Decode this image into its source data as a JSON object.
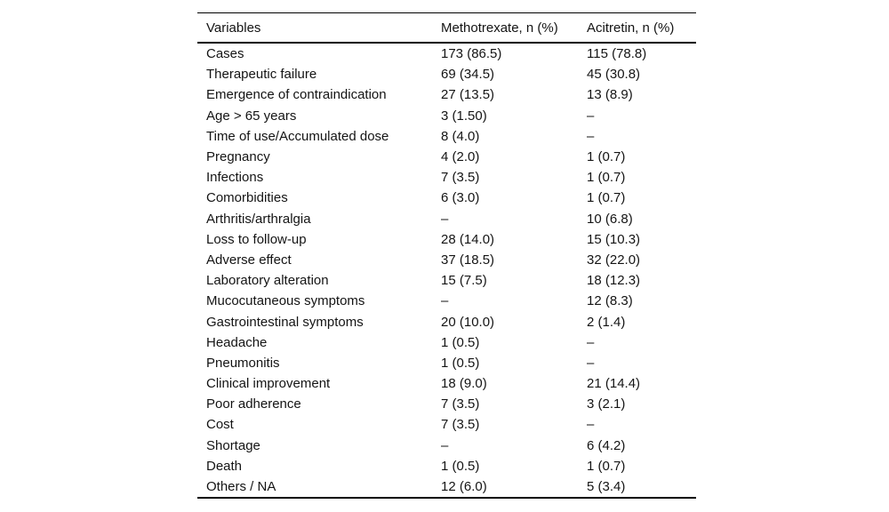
{
  "page": {
    "background_color": "#ffffff",
    "text_color": "#141414",
    "rule_color": "#000000"
  },
  "table": {
    "columns": [
      "Variables",
      "Methotrexate, n (%)",
      "Acitretin, n (%)"
    ],
    "rows": [
      [
        "Cases",
        "173 (86.5)",
        "115 (78.8)"
      ],
      [
        "Therapeutic failure",
        "69 (34.5)",
        "45 (30.8)"
      ],
      [
        "Emergence of contraindication",
        "27 (13.5)",
        "13 (8.9)"
      ],
      [
        "Age > 65 years",
        "3 (1.50)",
        "–"
      ],
      [
        "Time of use/Accumulated dose",
        "8 (4.0)",
        "–"
      ],
      [
        "Pregnancy",
        "4 (2.0)",
        "1 (0.7)"
      ],
      [
        "Infections",
        "7 (3.5)",
        "1 (0.7)"
      ],
      [
        "Comorbidities",
        "6 (3.0)",
        "1 (0.7)"
      ],
      [
        "Arthritis/arthralgia",
        "–",
        "10 (6.8)"
      ],
      [
        "Loss to follow-up",
        "28 (14.0)",
        "15 (10.3)"
      ],
      [
        "Adverse effect",
        "37 (18.5)",
        "32 (22.0)"
      ],
      [
        "Laboratory alteration",
        "15 (7.5)",
        "18 (12.3)"
      ],
      [
        "Mucocutaneous symptoms",
        "–",
        "12 (8.3)"
      ],
      [
        "Gastrointestinal symptoms",
        "20 (10.0)",
        "2 (1.4)"
      ],
      [
        "Headache",
        "1 (0.5)",
        "–"
      ],
      [
        "Pneumonitis",
        "1 (0.5)",
        "–"
      ],
      [
        "Clinical improvement",
        "18 (9.0)",
        "21 (14.4)"
      ],
      [
        "Poor adherence",
        "7 (3.5)",
        "3 (2.1)"
      ],
      [
        "Cost",
        "7 (3.5)",
        "–"
      ],
      [
        "Shortage",
        "–",
        "6 (4.2)"
      ],
      [
        "Death",
        "1 (0.5)",
        "1 (0.7)"
      ],
      [
        "Others / NA",
        "12 (6.0)",
        "5 (3.4)"
      ]
    ]
  }
}
